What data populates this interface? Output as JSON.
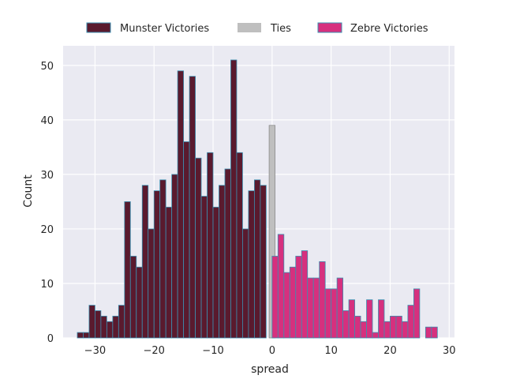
{
  "chart_data": {
    "type": "bar",
    "title": "",
    "xlabel": "spread",
    "ylabel": "Count",
    "xlim": [
      -35.4,
      30.9
    ],
    "ylim": [
      0,
      53.6
    ],
    "xticks": [
      -30,
      -20,
      -10,
      0,
      10,
      20,
      30
    ],
    "xtick_labels": [
      "−30",
      "−20",
      "−10",
      "0",
      "10",
      "20",
      "30"
    ],
    "yticks": [
      0,
      10,
      20,
      30,
      40,
      50
    ],
    "ytick_labels": [
      "0",
      "10",
      "20",
      "30",
      "40",
      "50"
    ],
    "grid": true,
    "legend_position": "top-center-outside",
    "series": [
      {
        "name": "Munster Victories",
        "color": "#5a1a2e",
        "edge": "#3c8fb0",
        "bins": [
          [
            -33,
            1
          ],
          [
            -32,
            1
          ],
          [
            -31,
            6
          ],
          [
            -30,
            5
          ],
          [
            -29,
            4
          ],
          [
            -28,
            3
          ],
          [
            -27,
            4
          ],
          [
            -26,
            6
          ],
          [
            -25,
            25
          ],
          [
            -24,
            15
          ],
          [
            -23,
            13
          ],
          [
            -22,
            28
          ],
          [
            -21,
            20
          ],
          [
            -20,
            27
          ],
          [
            -19,
            29
          ],
          [
            -18,
            24
          ],
          [
            -17,
            30
          ],
          [
            -16,
            49
          ],
          [
            -15,
            36
          ],
          [
            -14,
            48
          ],
          [
            -13,
            33
          ],
          [
            -12,
            26
          ],
          [
            -11,
            34
          ],
          [
            -10,
            24
          ],
          [
            -9,
            28
          ],
          [
            -8,
            31
          ],
          [
            -7,
            51
          ],
          [
            -6,
            34
          ],
          [
            -5,
            20
          ],
          [
            -4,
            27
          ],
          [
            -3,
            29
          ],
          [
            -2,
            28
          ]
        ]
      },
      {
        "name": "Ties",
        "color": "#bfbfbf",
        "edge": "#8c8c8c",
        "bins": [
          [
            -0.5,
            39
          ]
        ]
      },
      {
        "name": "Zebre Victories",
        "color": "#d6307e",
        "edge": "#3c8fb0",
        "bins": [
          [
            0,
            15
          ],
          [
            1,
            19
          ],
          [
            2,
            12
          ],
          [
            3,
            13
          ],
          [
            4,
            15
          ],
          [
            5,
            16
          ],
          [
            6,
            11
          ],
          [
            7,
            11
          ],
          [
            8,
            14
          ],
          [
            9,
            9
          ],
          [
            10,
            9
          ],
          [
            11,
            11
          ],
          [
            12,
            5
          ],
          [
            13,
            7
          ],
          [
            14,
            4
          ],
          [
            15,
            3
          ],
          [
            16,
            7
          ],
          [
            17,
            1
          ],
          [
            18,
            7
          ],
          [
            19,
            3
          ],
          [
            20,
            4
          ],
          [
            21,
            4
          ],
          [
            22,
            3
          ],
          [
            23,
            6
          ],
          [
            24,
            9
          ],
          [
            26,
            2
          ],
          [
            27,
            2
          ]
        ]
      }
    ]
  }
}
